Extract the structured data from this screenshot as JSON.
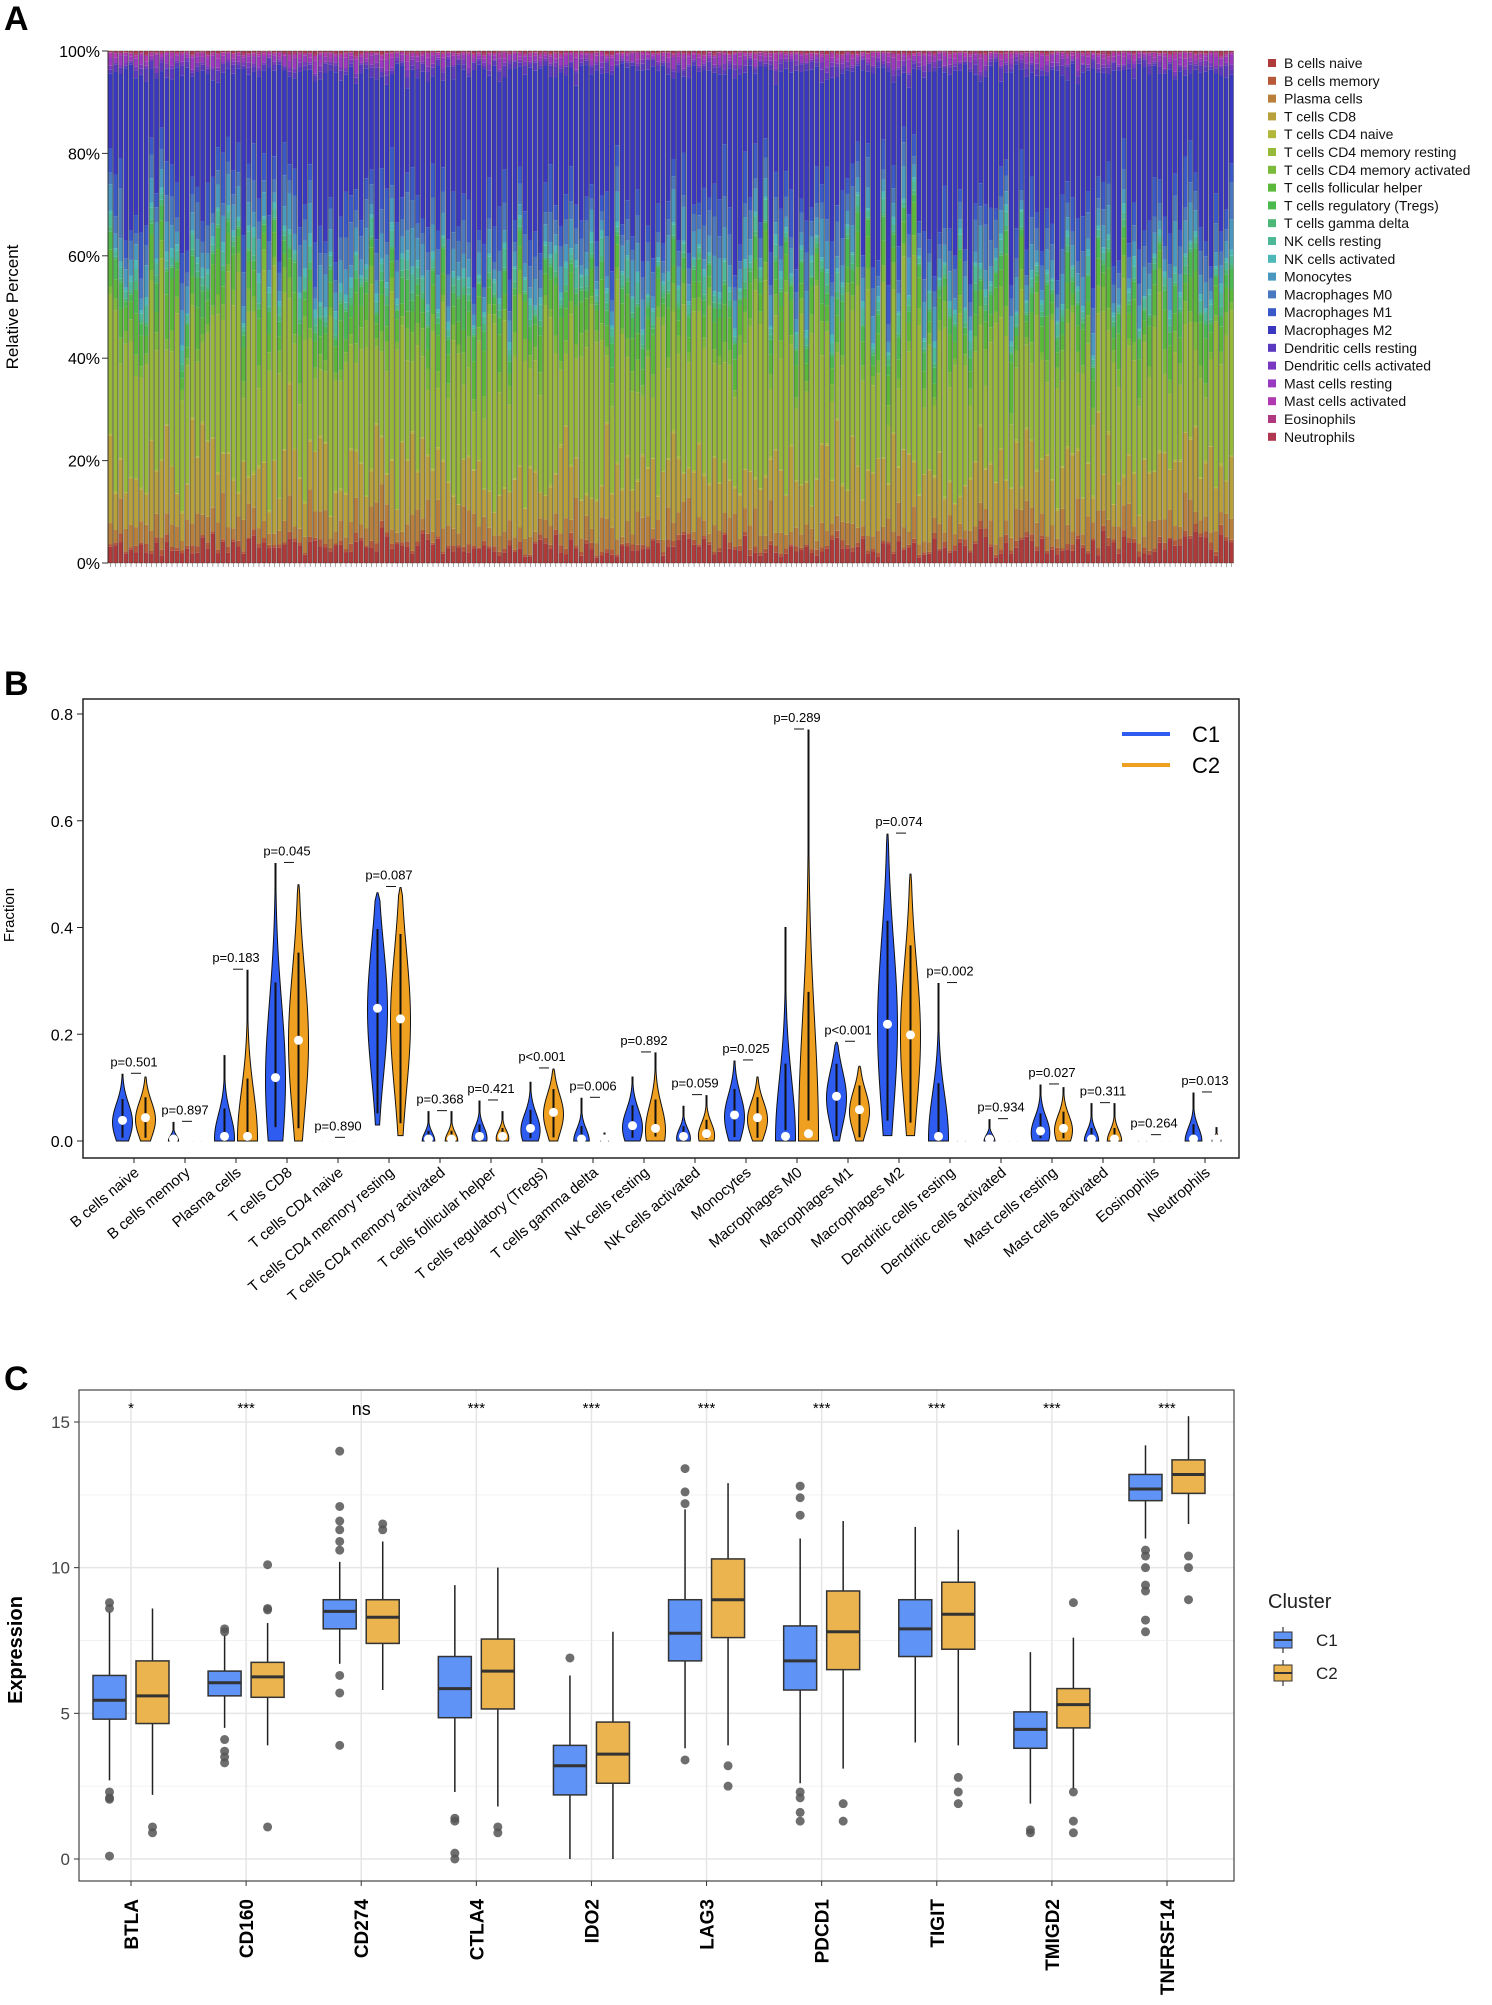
{
  "chart_data": [
    {
      "panel": "A",
      "type": "bar",
      "stacked": true,
      "ylabel": "Relative Percent",
      "ylim": [
        0,
        100
      ],
      "yticks": [
        "0%",
        "20%",
        "40%",
        "60%",
        "80%",
        "100%"
      ],
      "n_samples": 220,
      "legend_position": "right",
      "series": [
        {
          "name": "B cells naive",
          "mean_percent": 3.0,
          "color": "#b03a3a"
        },
        {
          "name": "B cells memory",
          "mean_percent": 0.8,
          "color": "#b8583a"
        },
        {
          "name": "Plasma cells",
          "mean_percent": 4.0,
          "color": "#b8803a"
        },
        {
          "name": "T cells CD8",
          "mean_percent": 10.0,
          "color": "#b8a03a"
        },
        {
          "name": "T cells CD4 naive",
          "mean_percent": 0.3,
          "color": "#b2b83a"
        },
        {
          "name": "T cells CD4 memory resting",
          "mean_percent": 25.0,
          "color": "#98b83a"
        },
        {
          "name": "T cells CD4 memory activated",
          "mean_percent": 3.0,
          "color": "#7cba3a"
        },
        {
          "name": "T cells follicular helper",
          "mean_percent": 5.0,
          "color": "#5cb83a"
        },
        {
          "name": "T cells regulatory (Tregs)",
          "mean_percent": 3.0,
          "color": "#4cb850"
        },
        {
          "name": "T cells gamma delta",
          "mean_percent": 0.8,
          "color": "#4cb878"
        },
        {
          "name": "NK cells resting",
          "mean_percent": 2.0,
          "color": "#4cb898"
        },
        {
          "name": "NK cells activated",
          "mean_percent": 1.0,
          "color": "#4cb8b8"
        },
        {
          "name": "Monocytes",
          "mean_percent": 4.0,
          "color": "#4a98c0"
        },
        {
          "name": "Macrophages M0",
          "mean_percent": 4.0,
          "color": "#4a78c0"
        },
        {
          "name": "Macrophages M1",
          "mean_percent": 5.0,
          "color": "#3a58c8"
        },
        {
          "name": "Macrophages M2",
          "mean_percent": 25.0,
          "color": "#3a38c0"
        },
        {
          "name": "Dendritic cells resting",
          "mean_percent": 1.2,
          "color": "#5a38c0"
        },
        {
          "name": "Dendritic cells activated",
          "mean_percent": 0.6,
          "color": "#7a38c0"
        },
        {
          "name": "Mast cells resting",
          "mean_percent": 1.2,
          "color": "#9a38c0"
        },
        {
          "name": "Mast cells activated",
          "mean_percent": 0.6,
          "color": "#b038b0"
        },
        {
          "name": "Eosinophils",
          "mean_percent": 0.2,
          "color": "#b03880"
        },
        {
          "name": "Neutrophils",
          "mean_percent": 0.3,
          "color": "#b03850"
        }
      ]
    },
    {
      "panel": "B",
      "type": "violin",
      "ylabel": "Fraction",
      "ylim": [
        0,
        0.8
      ],
      "yticks": [
        "0.0",
        "0.2",
        "0.4",
        "0.6",
        "0.8"
      ],
      "legend_position": "top-right",
      "groups": [
        {
          "name": "C1",
          "color": "#2f5cf0"
        },
        {
          "name": "C2",
          "color": "#f0a020"
        }
      ],
      "categories": [
        {
          "label": "B cells naive",
          "p": "p=0.501",
          "c1": {
            "median": 0.035,
            "max": 0.125,
            "min": 0
          },
          "c2": {
            "median": 0.04,
            "max": 0.12,
            "min": 0
          }
        },
        {
          "label": "B cells memory",
          "p": "p=0.897",
          "c1": {
            "median": 0,
            "max": 0.035,
            "min": 0
          },
          "c2": {
            "median": 0,
            "max": 0.005,
            "min": 0
          }
        },
        {
          "label": "Plasma cells",
          "p": "p=0.183",
          "c1": {
            "median": 0.005,
            "max": 0.16,
            "min": 0
          },
          "c2": {
            "median": 0.005,
            "max": 0.32,
            "min": 0
          }
        },
        {
          "label": "T cells CD8",
          "p": "p=0.045",
          "c1": {
            "median": 0.115,
            "max": 0.52,
            "min": 0
          },
          "c2": {
            "median": 0.185,
            "max": 0.48,
            "min": 0
          }
        },
        {
          "label": "T cells CD4 naive",
          "p": "p=0.890",
          "c1": {
            "median": 0,
            "max": 0.005,
            "min": 0
          },
          "c2": {
            "median": 0,
            "max": 0.005,
            "min": 0
          }
        },
        {
          "label": "T cells CD4 memory resting",
          "p": "p=0.087",
          "c1": {
            "median": 0.245,
            "max": 0.465,
            "min": 0.03
          },
          "c2": {
            "median": 0.225,
            "max": 0.475,
            "min": 0.01
          }
        },
        {
          "label": "T cells CD4 memory activated",
          "p": "p=0.368",
          "c1": {
            "median": 0,
            "max": 0.055,
            "min": 0
          },
          "c2": {
            "median": 0,
            "max": 0.055,
            "min": 0
          }
        },
        {
          "label": "T cells follicular helper",
          "p": "p=0.421",
          "c1": {
            "median": 0.005,
            "max": 0.075,
            "min": 0
          },
          "c2": {
            "median": 0.005,
            "max": 0.055,
            "min": 0
          }
        },
        {
          "label": "T cells regulatory (Tregs)",
          "p": "p<0.001",
          "c1": {
            "median": 0.02,
            "max": 0.11,
            "min": 0
          },
          "c2": {
            "median": 0.05,
            "max": 0.135,
            "min": 0
          }
        },
        {
          "label": "T cells gamma delta",
          "p": "p=0.006",
          "c1": {
            "median": 0,
            "max": 0.08,
            "min": 0
          },
          "c2": {
            "median": 0,
            "max": 0.015,
            "min": 0
          }
        },
        {
          "label": "NK cells resting",
          "p": "p=0.892",
          "c1": {
            "median": 0.025,
            "max": 0.12,
            "min": 0
          },
          "c2": {
            "median": 0.02,
            "max": 0.165,
            "min": 0
          }
        },
        {
          "label": "NK cells activated",
          "p": "p=0.059",
          "c1": {
            "median": 0.005,
            "max": 0.065,
            "min": 0
          },
          "c2": {
            "median": 0.01,
            "max": 0.085,
            "min": 0
          }
        },
        {
          "label": "Monocytes",
          "p": "p=0.025",
          "c1": {
            "median": 0.045,
            "max": 0.15,
            "min": 0
          },
          "c2": {
            "median": 0.04,
            "max": 0.12,
            "min": 0
          }
        },
        {
          "label": "Macrophages M0",
          "p": "p=0.289",
          "c1": {
            "median": 0.005,
            "max": 0.4,
            "min": 0
          },
          "c2": {
            "median": 0.01,
            "max": 0.77,
            "min": 0
          }
        },
        {
          "label": "Macrophages M1",
          "p": "p<0.001",
          "c1": {
            "median": 0.08,
            "max": 0.185,
            "min": 0
          },
          "c2": {
            "median": 0.055,
            "max": 0.14,
            "min": 0
          }
        },
        {
          "label": "Macrophages M2",
          "p": "p=0.074",
          "c1": {
            "median": 0.215,
            "max": 0.575,
            "min": 0.01
          },
          "c2": {
            "median": 0.195,
            "max": 0.5,
            "min": 0.01
          }
        },
        {
          "label": "Dendritic cells resting",
          "p": "p=0.002",
          "c1": {
            "median": 0.005,
            "max": 0.295,
            "min": 0
          },
          "c2": {
            "median": 0,
            "max": 0.01,
            "min": 0
          }
        },
        {
          "label": "Dendritic cells activated",
          "p": "p=0.934",
          "c1": {
            "median": 0,
            "max": 0.04,
            "min": 0
          },
          "c2": {
            "median": 0,
            "max": 0.005,
            "min": 0
          }
        },
        {
          "label": "Mast cells resting",
          "p": "p=0.027",
          "c1": {
            "median": 0.015,
            "max": 0.105,
            "min": 0
          },
          "c2": {
            "median": 0.02,
            "max": 0.1,
            "min": 0
          }
        },
        {
          "label": "Mast cells activated",
          "p": "p=0.311",
          "c1": {
            "median": 0,
            "max": 0.07,
            "min": 0
          },
          "c2": {
            "median": 0,
            "max": 0.07,
            "min": 0
          }
        },
        {
          "label": "Eosinophils",
          "p": "p=0.264",
          "c1": {
            "median": 0,
            "max": 0.01,
            "min": 0
          },
          "c2": {
            "median": 0,
            "max": 0.005,
            "min": 0
          }
        },
        {
          "label": "Neutrophils",
          "p": "p=0.013",
          "c1": {
            "median": 0,
            "max": 0.09,
            "min": 0
          },
          "c2": {
            "median": 0,
            "max": 0.025,
            "min": 0
          }
        }
      ]
    },
    {
      "panel": "C",
      "type": "box",
      "ylabel": "Expression",
      "ylim": [
        -0.8,
        15.9
      ],
      "yticks": [
        "0",
        "5",
        "10",
        "15"
      ],
      "legend_title": "Cluster",
      "legend_position": "right",
      "groups": [
        {
          "name": "C1",
          "color": "#5f93f5"
        },
        {
          "name": "C2",
          "color": "#ebb44e"
        }
      ],
      "genes": [
        {
          "label": "BTLA",
          "sig": "*",
          "c1": {
            "q1": 4.8,
            "med": 5.45,
            "q3": 6.3,
            "lo": 2.7,
            "hi": 8.5,
            "out": [
              8.8,
              8.6,
              2.3,
              2.1,
              2.05,
              0.1
            ]
          },
          "c2": {
            "q1": 4.65,
            "med": 5.6,
            "q3": 6.8,
            "lo": 2.2,
            "hi": 8.6,
            "out": [
              1.1,
              0.9
            ]
          }
        },
        {
          "label": "CD160",
          "sig": "***",
          "c1": {
            "q1": 5.6,
            "med": 6.05,
            "q3": 6.45,
            "lo": 4.5,
            "hi": 7.7,
            "out": [
              7.9,
              7.8,
              4.1,
              3.7,
              3.5,
              3.3
            ]
          },
          "c2": {
            "q1": 5.55,
            "med": 6.25,
            "q3": 6.75,
            "lo": 3.9,
            "hi": 8.1,
            "out": [
              10.1,
              8.6,
              8.55,
              1.1
            ]
          }
        },
        {
          "label": "CD274",
          "sig": "ns",
          "c1": {
            "q1": 7.9,
            "med": 8.5,
            "q3": 8.9,
            "lo": 6.7,
            "hi": 10.2,
            "out": [
              14.0,
              12.1,
              11.6,
              11.3,
              10.9,
              10.6,
              6.3,
              5.7,
              3.9
            ]
          },
          "c2": {
            "q1": 7.4,
            "med": 8.3,
            "q3": 8.9,
            "lo": 5.8,
            "hi": 10.9,
            "out": [
              11.5,
              11.3
            ]
          }
        },
        {
          "label": "CTLA4",
          "sig": "***",
          "c1": {
            "q1": 4.85,
            "med": 5.85,
            "q3": 6.95,
            "lo": 2.3,
            "hi": 9.4,
            "out": [
              1.4,
              1.3,
              0.2,
              0.0
            ]
          },
          "c2": {
            "q1": 5.15,
            "med": 6.45,
            "q3": 7.55,
            "lo": 1.8,
            "hi": 10.0,
            "out": [
              1.1,
              0.9
            ]
          }
        },
        {
          "label": "IDO2",
          "sig": "***",
          "c1": {
            "q1": 2.2,
            "med": 3.2,
            "q3": 3.9,
            "lo": 0.0,
            "hi": 6.3,
            "out": [
              6.9
            ]
          },
          "c2": {
            "q1": 2.6,
            "med": 3.6,
            "q3": 4.7,
            "lo": 0.0,
            "hi": 7.8,
            "out": []
          }
        },
        {
          "label": "LAG3",
          "sig": "***",
          "c1": {
            "q1": 6.8,
            "med": 7.75,
            "q3": 8.9,
            "lo": 3.8,
            "hi": 12.0,
            "out": [
              13.4,
              12.6,
              12.2,
              3.4
            ]
          },
          "c2": {
            "q1": 7.6,
            "med": 8.9,
            "q3": 10.3,
            "lo": 3.9,
            "hi": 12.9,
            "out": [
              3.2,
              2.5
            ]
          }
        },
        {
          "label": "PDCD1",
          "sig": "***",
          "c1": {
            "q1": 5.8,
            "med": 6.8,
            "q3": 8.0,
            "lo": 2.6,
            "hi": 11.0,
            "out": [
              12.8,
              12.4,
              11.8,
              2.3,
              2.1,
              1.6,
              1.3
            ]
          },
          "c2": {
            "q1": 6.5,
            "med": 7.8,
            "q3": 9.2,
            "lo": 3.1,
            "hi": 11.6,
            "out": [
              1.9,
              1.3
            ]
          }
        },
        {
          "label": "TIGIT",
          "sig": "***",
          "c1": {
            "q1": 6.95,
            "med": 7.9,
            "q3": 8.9,
            "lo": 4.0,
            "hi": 11.4,
            "out": []
          },
          "c2": {
            "q1": 7.2,
            "med": 8.4,
            "q3": 9.5,
            "lo": 3.9,
            "hi": 11.3,
            "out": [
              2.8,
              2.3,
              1.9
            ]
          }
        },
        {
          "label": "TMIGD2",
          "sig": "***",
          "c1": {
            "q1": 3.8,
            "med": 4.45,
            "q3": 5.05,
            "lo": 1.9,
            "hi": 7.1,
            "out": [
              1.0,
              0.9
            ]
          },
          "c2": {
            "q1": 4.5,
            "med": 5.3,
            "q3": 5.85,
            "lo": 2.4,
            "hi": 7.6,
            "out": [
              8.8,
              2.3,
              1.3,
              0.9
            ]
          }
        },
        {
          "label": "TNFRSF14",
          "sig": "***",
          "c1": {
            "q1": 12.3,
            "med": 12.7,
            "q3": 13.2,
            "lo": 11.0,
            "hi": 14.2,
            "out": [
              10.6,
              10.4,
              10.0,
              9.4,
              9.2,
              8.2,
              7.8
            ]
          },
          "c2": {
            "q1": 12.55,
            "med": 13.2,
            "q3": 13.7,
            "lo": 11.5,
            "hi": 15.2,
            "out": [
              10.4,
              10.0,
              8.9
            ]
          }
        }
      ]
    }
  ],
  "panel_labels": [
    "A",
    "B",
    "C"
  ]
}
